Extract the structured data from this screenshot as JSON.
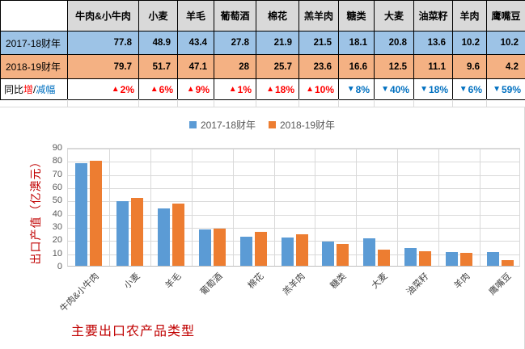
{
  "table": {
    "corner_label": "",
    "columns": [
      "牛肉&小牛肉",
      "小麦",
      "羊毛",
      "葡萄酒",
      "棉花",
      "羔羊肉",
      "糖类",
      "大麦",
      "油菜籽",
      "羊肉",
      "鹰嘴豆"
    ],
    "rows": [
      {
        "label": "2017-18财年",
        "bg": "#9dc3e6",
        "values": [
          "77.8",
          "48.9",
          "43.4",
          "27.8",
          "21.9",
          "21.5",
          "18.1",
          "20.8",
          "13.6",
          "10.2",
          "10.2"
        ]
      },
      {
        "label": "2018-19财年",
        "bg": "#f4b183",
        "values": [
          "79.7",
          "51.7",
          "47.1",
          "28",
          "25.7",
          "23.6",
          "16.6",
          "12.5",
          "11.1",
          "9.6",
          "4.2"
        ]
      }
    ],
    "change_row": {
      "label_parts": [
        {
          "text": "同比",
          "color": "#000000"
        },
        {
          "text": "增",
          "color": "#ff0000"
        },
        {
          "text": "/",
          "color": "#000000"
        },
        {
          "text": "减幅",
          "color": "#0070c0"
        }
      ],
      "up_symbol": "▲",
      "down_symbol": "▼",
      "up_color": "#ff0000",
      "down_color": "#0070c0",
      "values": [
        {
          "dir": "up",
          "text": "2%"
        },
        {
          "dir": "up",
          "text": "6%"
        },
        {
          "dir": "up",
          "text": "9%"
        },
        {
          "dir": "up",
          "text": "1%"
        },
        {
          "dir": "up",
          "text": "18%"
        },
        {
          "dir": "up",
          "text": "10%"
        },
        {
          "dir": "down",
          "text": "8%"
        },
        {
          "dir": "down",
          "text": "40%"
        },
        {
          "dir": "down",
          "text": "18%"
        },
        {
          "dir": "down",
          "text": "6%"
        },
        {
          "dir": "down",
          "text": "59%"
        }
      ]
    },
    "header_bg": "#d9d9d9"
  },
  "chart_data": {
    "type": "bar",
    "title": "主要出口农产品类型",
    "ylabel": "出口产值（亿澳元）",
    "categories": [
      "牛肉&小牛肉",
      "小麦",
      "羊毛",
      "葡萄酒",
      "棉花",
      "羔羊肉",
      "糖类",
      "大麦",
      "油菜籽",
      "羊肉",
      "鹰嘴豆"
    ],
    "series": [
      {
        "name": "2017-18财年",
        "color": "#5b9bd5",
        "values": [
          77.8,
          48.9,
          43.4,
          27.8,
          21.9,
          21.5,
          18.1,
          20.8,
          13.6,
          10.2,
          10.2
        ]
      },
      {
        "name": "2018-19财年",
        "color": "#ed7d31",
        "values": [
          79.7,
          51.7,
          47.1,
          28,
          25.7,
          23.6,
          16.6,
          12.5,
          11.1,
          9.6,
          4.2
        ]
      }
    ],
    "ylim": [
      0,
      90
    ],
    "ytick_step": 10,
    "yticks": [
      0,
      10,
      20,
      30,
      40,
      50,
      60,
      70,
      80,
      90
    ],
    "grid": true,
    "legend_position": "top"
  }
}
